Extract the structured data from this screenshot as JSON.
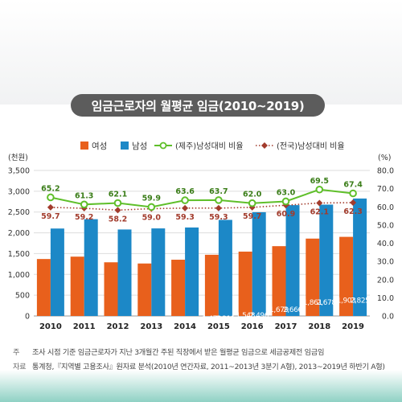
{
  "title": "임금근로자의 월평균 임금(2010~2019)",
  "chart_data": {
    "type": "bar",
    "title": "임금근로자의 월평균 임금(2010~2019)",
    "categories": [
      "2010",
      "2011",
      "2012",
      "2013",
      "2014",
      "2015",
      "2016",
      "2017",
      "2018",
      "2019"
    ],
    "y_left_label": "(천원)",
    "y_right_label": "(%)",
    "ylim_left": [
      0,
      3500
    ],
    "ylim_right": [
      0.0,
      80.0
    ],
    "y_left_ticks": [
      "0",
      "500",
      "1,000",
      "1,500",
      "2,000",
      "2,500",
      "3,000",
      "3,500"
    ],
    "y_right_ticks": [
      "0.0",
      "10.0",
      "20.0",
      "30.0",
      "40.0",
      "50.0",
      "60.0",
      "70.0",
      "80.0"
    ],
    "legend_position": "top",
    "grid": true,
    "series": [
      {
        "name": "여성",
        "kind": "bar",
        "color": "#e8601c",
        "values": [
          1370,
          1427,
          1291,
          1262,
          1353,
          1472,
          1548,
          1679,
          1861,
          1903
        ],
        "labels": [
          "1,370",
          "1,427",
          "1,291",
          "1,262",
          "1,353",
          "1,472",
          "1,548",
          "1,679",
          "1,861",
          "1,903"
        ]
      },
      {
        "name": "남성",
        "kind": "bar",
        "color": "#1c88c7",
        "values": [
          2103,
          2328,
          2080,
          2106,
          2128,
          2311,
          2496,
          2666,
          2678,
          2825
        ],
        "labels": [
          "2,103",
          "2,328",
          "2,080",
          "2,106",
          "2,128",
          "2,311",
          "2,496",
          "2,666",
          "2,678",
          "2,825"
        ]
      },
      {
        "name": "(제주)남성대비 비율",
        "kind": "line",
        "axis": "right",
        "color": "#5fbf2a",
        "values": [
          65.2,
          61.3,
          62.1,
          59.9,
          63.6,
          63.7,
          62.0,
          63.0,
          69.5,
          67.4
        ],
        "labels": [
          "65.2",
          "61.3",
          "62.1",
          "59.9",
          "63.6",
          "63.7",
          "62.0",
          "63.0",
          "69.5",
          "67.4"
        ]
      },
      {
        "name": "(전국)남성대비 비율",
        "kind": "dotted-line",
        "axis": "right",
        "color": "#a23b2c",
        "values": [
          59.7,
          59.2,
          58.2,
          59.0,
          59.3,
          59.3,
          59.7,
          60.9,
          62.1,
          62.3
        ],
        "labels": [
          "59.7",
          "59.2",
          "58.2",
          "59.0",
          "59.3",
          "59.3",
          "59.7",
          "60.9",
          "62.1",
          "62.3"
        ]
      }
    ]
  },
  "notes": [
    {
      "key": "주",
      "text": "조사 시점 기준 임금근로자가 지난 3개월간 주된 직장에서 받은 월평균 임금으로 세금공제전 임금임"
    },
    {
      "key": "자료",
      "text": "통계청,『지역별 고용조사』원자료 분석(2010년 연간자료, 2011~2013년 3분기 A형), 2013~2019년 하반기 A형)"
    }
  ]
}
